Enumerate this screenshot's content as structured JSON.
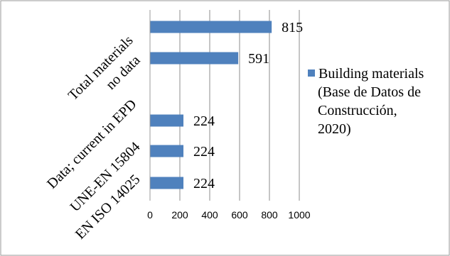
{
  "chart_data": {
    "type": "bar",
    "orientation": "horizontal",
    "categories": [
      "Total materials",
      "no data",
      "Data; current in EPD",
      "UNE-EN 15804",
      "EN ISO 14025"
    ],
    "series": [
      {
        "name": "Building materials (Base de Datos de Construcción, 2020)",
        "values": [
          815,
          591,
          224,
          224,
          224
        ],
        "color": "#4f81bd"
      }
    ],
    "legend_lines": [
      "Building materials",
      "(Base de Datos de",
      "Construcción,",
      "2020)"
    ],
    "legend_position": "right",
    "xlim": [
      0,
      1000
    ],
    "xticks": [
      0,
      200,
      400,
      600,
      800,
      1000
    ],
    "xgrid": true,
    "data_labels": true,
    "category_labels": [
      "Total materials",
      "no data",
      "Data; current in EPD",
      "UNE-EN 15804",
      "EN ISO 14025"
    ]
  }
}
